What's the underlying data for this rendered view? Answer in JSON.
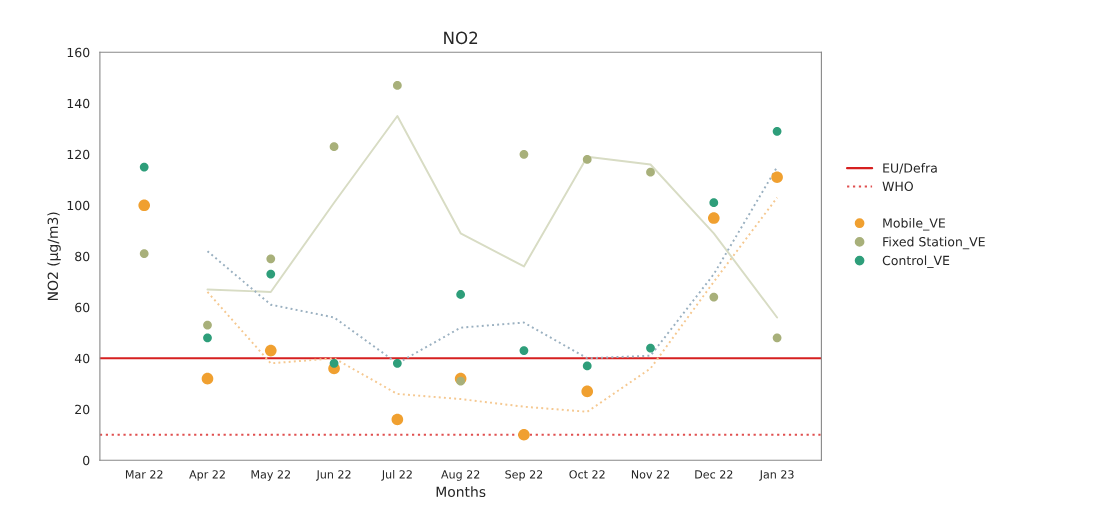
{
  "chart_data": {
    "type": "scatter",
    "title": "NO2",
    "xlabel": "Months",
    "ylabel": "NO2 (µg/m3)",
    "categories": [
      "Mar 22",
      "Apr 22",
      "May 22",
      "Jun 22",
      "Jul 22",
      "Aug 22",
      "Sep 22",
      "Oct 22",
      "Nov 22",
      "Dec 22",
      "Jan 23"
    ],
    "series": [
      {
        "name": "Mobile_VE",
        "color": "#f0a030",
        "marker": "circle",
        "values": [
          100,
          32,
          43,
          36,
          16,
          32,
          10,
          27,
          null,
          95,
          111
        ]
      },
      {
        "name": "Fixed Station_VE",
        "color": "#a8b07a",
        "marker": "circle",
        "values": [
          81,
          53,
          79,
          123,
          147,
          31,
          120,
          118,
          113,
          64,
          48
        ]
      },
      {
        "name": "Control_VE",
        "color": "#2e9e7a",
        "marker": "circle",
        "values": [
          115,
          48,
          73,
          38,
          38,
          65,
          43,
          37,
          44,
          101,
          129
        ]
      },
      {
        "type": "line",
        "marker": "none",
        "color": "#f5c890",
        "line_style": "dotted",
        "values": [
          null,
          66,
          38,
          40,
          26,
          24,
          21,
          19,
          36,
          70,
          103
        ]
      },
      {
        "type": "line",
        "marker": "none",
        "color": "#d8dcc4",
        "line_style": "solid",
        "values": [
          null,
          67,
          66,
          101,
          135,
          89,
          76,
          119,
          116,
          89,
          56
        ]
      },
      {
        "type": "line",
        "marker": "none",
        "color": "#9ab0c0",
        "line_style": "dotted",
        "values": [
          null,
          82,
          61,
          56,
          38,
          52,
          54,
          40,
          41,
          73,
          115
        ]
      }
    ],
    "ref_lines": [
      {
        "axis": "y",
        "value": 40,
        "label": "EU/Defra",
        "color": "#d62020",
        "line_style": "solid"
      },
      {
        "axis": "y",
        "value": 10,
        "label": "WHO",
        "color": "#e05050",
        "line_style": "dotted"
      }
    ],
    "ylim": [
      0,
      160
    ],
    "yticks": [
      0,
      20,
      40,
      60,
      80,
      100,
      120,
      140,
      160
    ],
    "grid": false,
    "legend": "right"
  }
}
